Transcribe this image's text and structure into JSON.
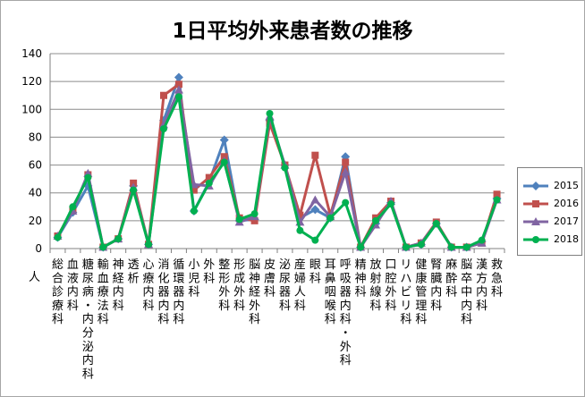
{
  "chart_data": {
    "type": "line",
    "title": "1日平均外来患者数の推移",
    "ylabel": "人",
    "ylim": [
      0,
      140
    ],
    "yticks": [
      0,
      20,
      40,
      60,
      80,
      100,
      120,
      140
    ],
    "grid": true,
    "legend_position": "right",
    "categories": [
      "総合診療科",
      "血液内科",
      "糖尿病・内分泌内科",
      "輸血療法科",
      "神経内科",
      "透析",
      "心療内科",
      "消化器内科",
      "循環器内科",
      "小児科",
      "外科",
      "整形外科",
      "形成外科",
      "脳神経外科",
      "皮膚科",
      "泌尿器科",
      "産婦人科",
      "眼科",
      "耳鼻咽喉科",
      "呼吸器内科・外科",
      "精神科",
      "放射線科",
      "口腔外科",
      "リハビリ科",
      "健康管理科",
      "腎臓内科",
      "麻酔科",
      "脳卒中内科",
      "漢方内科",
      "救急科"
    ],
    "series": [
      {
        "name": "2015",
        "color": "#4f81bd",
        "marker": "diamond",
        "values": [
          8,
          26,
          45,
          1,
          7,
          45,
          3,
          92,
          123,
          27,
          48,
          78,
          20,
          21,
          92,
          60,
          22,
          28,
          22,
          66,
          1,
          18,
          33,
          1,
          3,
          18,
          1,
          1,
          5,
          36
        ]
      },
      {
        "name": "2016",
        "color": "#c0504d",
        "marker": "square",
        "values": [
          9,
          28,
          53,
          1,
          7,
          47,
          3,
          110,
          118,
          42,
          51,
          66,
          22,
          20,
          90,
          60,
          24,
          67,
          24,
          62,
          1,
          22,
          34,
          1,
          4,
          19,
          1,
          1,
          4,
          39
        ]
      },
      {
        "name": "2017",
        "color": "#8064a2",
        "marker": "triangle",
        "values": [
          9,
          27,
          54,
          1,
          7,
          44,
          3,
          89,
          114,
          46,
          45,
          63,
          19,
          23,
          95,
          60,
          19,
          35,
          23,
          55,
          1,
          17,
          34,
          1,
          4,
          18,
          1,
          1,
          4,
          35
        ]
      },
      {
        "name": "2018",
        "color": "#00b050",
        "marker": "circle",
        "values": [
          8,
          30,
          51,
          1,
          7,
          42,
          3,
          86,
          109,
          27,
          47,
          62,
          21,
          25,
          97,
          58,
          13,
          6,
          22,
          33,
          1,
          20,
          32,
          1,
          3,
          18,
          1,
          1,
          6,
          35
        ]
      }
    ]
  }
}
